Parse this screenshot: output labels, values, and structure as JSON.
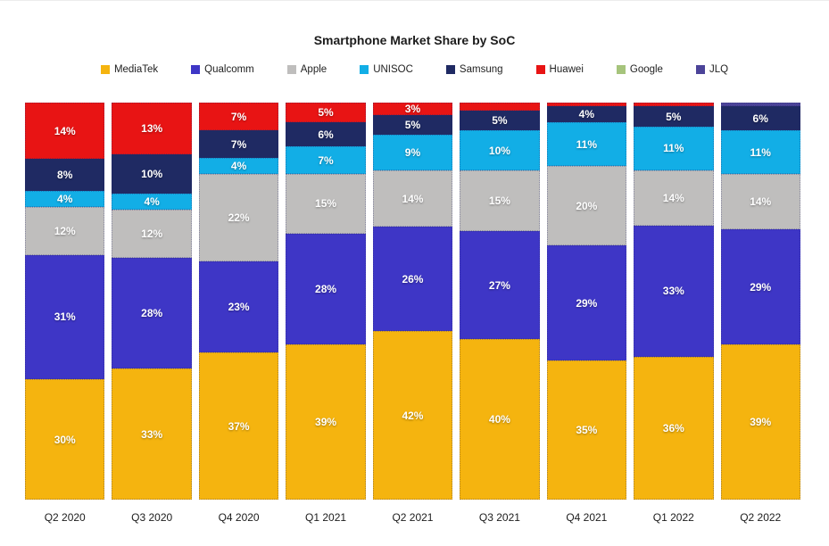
{
  "chart_data": {
    "type": "bar",
    "stacked": true,
    "title": "Smartphone Market Share by SoC",
    "legend_position": "top",
    "grid": false,
    "value_suffix": "%",
    "label_min_value": 3,
    "categories": [
      "Q2 2020",
      "Q3 2020",
      "Q4 2020",
      "Q1 2021",
      "Q2 2021",
      "Q3 2021",
      "Q4 2021",
      "Q1 2022",
      "Q2 2022"
    ],
    "series": [
      {
        "name": "MediaTek",
        "color": "#F5B40F",
        "values": [
          30,
          33,
          37,
          39,
          42,
          40,
          35,
          36,
          39
        ]
      },
      {
        "name": "Qualcomm",
        "color": "#3E36C6",
        "values": [
          31,
          28,
          23,
          28,
          26,
          27,
          29,
          33,
          29
        ]
      },
      {
        "name": "Apple",
        "color": "#BFBEBD",
        "values": [
          12,
          12,
          22,
          15,
          14,
          15,
          20,
          14,
          14
        ]
      },
      {
        "name": "UNISOC",
        "color": "#12AEE6",
        "values": [
          4,
          4,
          4,
          7,
          9,
          10,
          11,
          11,
          11
        ]
      },
      {
        "name": "Samsung",
        "color": "#1F2A63",
        "values": [
          8,
          10,
          7,
          6,
          5,
          5,
          4,
          5,
          6
        ]
      },
      {
        "name": "Huawei",
        "color": "#E81414",
        "values": [
          14,
          13,
          7,
          5,
          3,
          2,
          1,
          1,
          0
        ]
      },
      {
        "name": "Google",
        "color": "#A6C47C",
        "values": [
          0,
          0,
          0,
          0,
          0,
          0,
          0,
          0,
          0
        ]
      },
      {
        "name": "JLQ",
        "color": "#4C4499",
        "values": [
          0,
          0,
          0,
          0,
          0,
          0,
          0,
          0,
          1
        ]
      }
    ]
  }
}
